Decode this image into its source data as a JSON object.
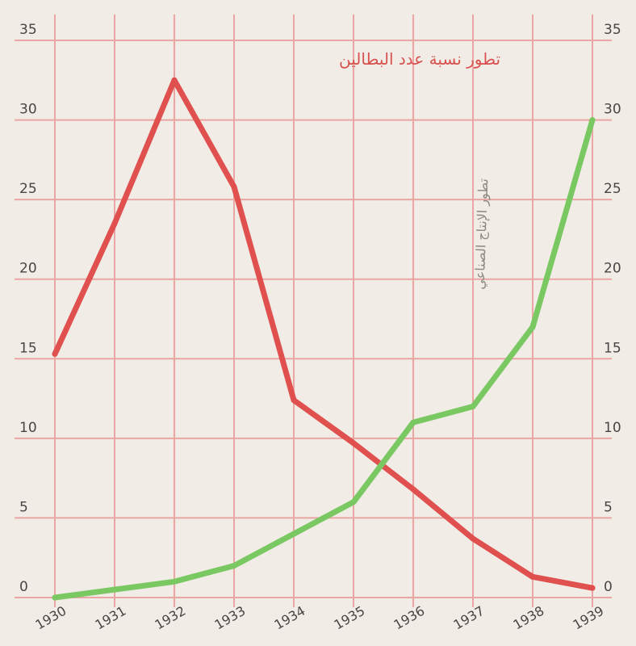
{
  "chart_data": {
    "type": "line",
    "x": [
      "1930",
      "1931",
      "1932",
      "1933",
      "1934",
      "1935",
      "1936",
      "1937",
      "1938",
      "1939"
    ],
    "series": [
      {
        "name": "تطور نسبة عدد البطالين",
        "color": "#e0504e",
        "values": [
          15.3,
          23.5,
          32.5,
          25.8,
          12.4,
          9.7,
          6.8,
          3.7,
          1.3,
          0.6
        ]
      },
      {
        "name": "تطور الإنتاج الصناعي",
        "color": "#79c862",
        "values": [
          0,
          0.5,
          1,
          2,
          4,
          6,
          11,
          12,
          17,
          30
        ]
      }
    ],
    "y_left": {
      "ylim": [
        0,
        35
      ],
      "ticks": [
        "0",
        "5",
        "10",
        "15",
        "20",
        "25",
        "30",
        "35"
      ]
    },
    "y_right": {
      "ylim": [
        0,
        35
      ],
      "ticks": [
        "0",
        "5",
        "10",
        "15",
        "20",
        "25",
        "30",
        "35"
      ]
    },
    "grid": true,
    "grid_color": "#e9a6a3",
    "background": "#f1ece6",
    "legend": "none"
  }
}
